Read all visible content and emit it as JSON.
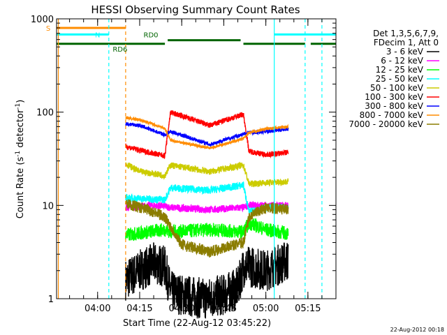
{
  "chart_data": {
    "type": "line",
    "title": "HESSI Observing Summary Count Rates",
    "xlabel": "Start Time (22-Aug-12 03:45:22)",
    "ylabel": "Count Rate (s",
    "ylabel_sup1": "-1",
    "ylabel_mid": " detector",
    "ylabel_sup2": "-1",
    "ylabel_end": ")",
    "y_scale": "log",
    "ylim": [
      1,
      1000
    ],
    "xlim": [
      "03:45:22",
      "05:25:00"
    ],
    "y_ticks": [
      {
        "value": 1,
        "label": "1"
      },
      {
        "value": 10,
        "label": "10"
      },
      {
        "value": 100,
        "label": "100"
      },
      {
        "value": 1000,
        "label": "1000"
      }
    ],
    "x_ticks": [
      {
        "value": "04:00",
        "label": "04:00"
      },
      {
        "value": "04:15",
        "label": "04:15"
      },
      {
        "value": "04:30",
        "label": "04:30"
      },
      {
        "value": "04:45",
        "label": "04:45"
      },
      {
        "value": "05:00",
        "label": "05:00"
      },
      {
        "value": "05:15",
        "label": "05:15"
      }
    ],
    "legend": {
      "position": "right",
      "header": [
        "Det 1,3,5,6,7,9,",
        "FDecim 1, Att 0"
      ],
      "entries": [
        {
          "label": "3 - 6 keV",
          "color": "#000000"
        },
        {
          "label": "6 - 12 keV",
          "color": "#ff00ff"
        },
        {
          "label": "12 - 25 keV",
          "color": "#00ff00"
        },
        {
          "label": "25 - 50 keV",
          "color": "#00ffff"
        },
        {
          "label": "50 - 100 keV",
          "color": "#cccc00"
        },
        {
          "label": "100 - 300 keV",
          "color": "#ff0000"
        },
        {
          "label": "300 - 800 keV",
          "color": "#0000ff"
        },
        {
          "label": "800 - 7000 keV",
          "color": "#ff8c00"
        },
        {
          "label": "7000 - 20000 keV",
          "color": "#8b7d00"
        }
      ]
    },
    "series": [
      {
        "name": "3 - 6 keV",
        "color": "#000000",
        "noise": 0.45,
        "x": [
          "04:10",
          "04:15",
          "04:20",
          "04:24",
          "04:26",
          "04:30",
          "04:38",
          "04:45",
          "04:50",
          "04:52",
          "04:55",
          "05:00",
          "05:08"
        ],
        "values": [
          1.6,
          2.0,
          2.4,
          2.2,
          1.2,
          1.1,
          1.0,
          1.1,
          1.3,
          2.2,
          2.2,
          2.0,
          2.6
        ]
      },
      {
        "name": "6 - 12 keV",
        "color": "#ff00ff",
        "noise": 0.08,
        "x": [
          "04:10",
          "04:20",
          "04:24",
          "04:26",
          "04:40",
          "04:52",
          "04:54",
          "05:00",
          "05:08"
        ],
        "values": [
          9.5,
          10.0,
          9.8,
          9.5,
          9.0,
          9.5,
          10.0,
          10.0,
          10.0
        ]
      },
      {
        "name": "12 - 25 keV",
        "color": "#00ff00",
        "noise": 0.15,
        "x": [
          "04:10",
          "04:20",
          "04:24",
          "04:26",
          "04:40",
          "04:52",
          "04:54",
          "05:00",
          "05:08"
        ],
        "values": [
          4.8,
          5.3,
          5.5,
          5.2,
          5.5,
          5.2,
          6.5,
          5.5,
          5.0
        ]
      },
      {
        "name": "25 - 50 keV",
        "color": "#00ffff",
        "noise": 0.08,
        "x": [
          "04:10",
          "04:24",
          "04:26",
          "04:40",
          "04:52",
          "04:54",
          "05:00",
          "05:08"
        ],
        "values": [
          12.0,
          11.5,
          15.5,
          14.5,
          16.5,
          8.5,
          9.5,
          9.5
        ]
      },
      {
        "name": "50 - 100 keV",
        "color": "#cccc00",
        "noise": 0.07,
        "x": [
          "04:10",
          "04:15",
          "04:24",
          "04:26",
          "04:40",
          "04:52",
          "04:54",
          "05:00",
          "05:08"
        ],
        "values": [
          28.0,
          23.0,
          21.0,
          27.0,
          23.0,
          27.0,
          17.0,
          17.5,
          18.0
        ]
      },
      {
        "name": "100 - 300 keV",
        "color": "#ff0000",
        "noise": 0.06,
        "x": [
          "04:10",
          "04:15",
          "04:24",
          "04:26",
          "04:40",
          "04:52",
          "04:54",
          "05:00",
          "05:08"
        ],
        "values": [
          43.0,
          39.0,
          34.0,
          100.0,
          72.0,
          95.0,
          38.0,
          35.0,
          37.0
        ]
      },
      {
        "name": "300 - 800 keV",
        "color": "#0000ff",
        "noise": 0.04,
        "x": [
          "04:10",
          "04:15",
          "04:24",
          "04:26",
          "04:40",
          "04:52",
          "04:54",
          "05:00",
          "05:08"
        ],
        "values": [
          75.0,
          72.0,
          57.0,
          62.0,
          45.0,
          58.0,
          60.0,
          62.0,
          66.0
        ]
      },
      {
        "name": "800 - 7000 keV",
        "color": "#ff8c00",
        "noise": 0.03,
        "x": [
          "04:10",
          "04:15",
          "04:24",
          "04:26",
          "04:40",
          "04:52",
          "04:54",
          "05:00",
          "05:08"
        ],
        "values": [
          87.0,
          83.0,
          67.0,
          50.0,
          41.0,
          52.0,
          60.0,
          66.0,
          70.0
        ]
      },
      {
        "name": "7000 - 20000 keV",
        "color": "#8b7d00",
        "noise": 0.12,
        "x": [
          "04:10",
          "04:18",
          "04:24",
          "04:30",
          "04:40",
          "04:52",
          "04:54",
          "05:00",
          "05:08"
        ],
        "values": [
          10.5,
          9.0,
          7.5,
          3.8,
          3.2,
          4.0,
          7.5,
          9.5,
          9.0
        ]
      }
    ],
    "annotations": [
      {
        "text": "S",
        "color": "#ff8c00"
      },
      {
        "text": "N",
        "color": "#00ffff"
      },
      {
        "text": "RD0",
        "color": "#006400"
      },
      {
        "text": "RD6",
        "color": "#006400"
      }
    ],
    "flags": {
      "saa": {
        "color": "#ff8c00",
        "level": 800,
        "segments": [
          [
            "03:45:22",
            "04:10"
          ]
        ]
      },
      "night": {
        "color": "#00ffff",
        "level": 680,
        "segments": [
          [
            "03:45:22",
            "04:04"
          ],
          [
            "05:03",
            "05:25"
          ]
        ]
      },
      "rd0": {
        "color": "#006400",
        "level": 590,
        "segments": [
          [
            "04:25",
            "04:51"
          ]
        ]
      },
      "data": {
        "color": "#006400",
        "level": 540,
        "segments": [
          [
            "03:45:22",
            "04:24"
          ],
          [
            "04:52",
            "05:14"
          ],
          [
            "05:16",
            "05:25"
          ]
        ]
      }
    },
    "vlines": [
      {
        "x": "03:46",
        "color": "#ff8c00",
        "style": "solid"
      },
      {
        "x": "04:04",
        "color": "#00ffff",
        "style": "dashed"
      },
      {
        "x": "04:10",
        "color": "#ff8c00",
        "style": "dashed"
      },
      {
        "x": "05:03",
        "color": "#00ffff",
        "style": "solid"
      },
      {
        "x": "05:20",
        "color": "#00ffff",
        "style": "dashed"
      },
      {
        "x": "05:14",
        "color": "#00ffff",
        "style": "dashed"
      }
    ]
  },
  "footer": {
    "timestamp": "22-Aug-2012 00:18"
  }
}
